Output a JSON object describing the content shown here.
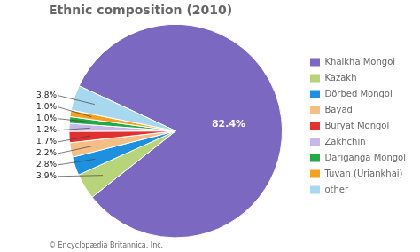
{
  "chart_data": {
    "type": "pie",
    "title": "Ethnic composition (2010)",
    "annotations": [
      "© Encyclopædia Britannica, Inc."
    ],
    "categories": [
      "Khalkha Mongol",
      "Kazakh",
      "Dörbed Mongol",
      "Bayad",
      "Buryat Mongol",
      "Zakhchin",
      "Dariganga Mongol",
      "Tuvan (Uriankhai)",
      "other"
    ],
    "values": [
      82.4,
      3.9,
      2.8,
      2.2,
      1.7,
      1.2,
      1.0,
      1.0,
      3.8
    ],
    "value_labels": [
      "82.4%",
      "3.9%",
      "2.8%",
      "2.2%",
      "1.7%",
      "1.2%",
      "1.0%",
      "1.0%",
      "3.8%"
    ],
    "colors": [
      "#7B68C0",
      "#B8D47A",
      "#1E90E0",
      "#F5BE85",
      "#E03030",
      "#C8B8E8",
      "#22AA44",
      "#F5A020",
      "#A8D8F0"
    ],
    "data_labels": true,
    "legend": "right"
  }
}
